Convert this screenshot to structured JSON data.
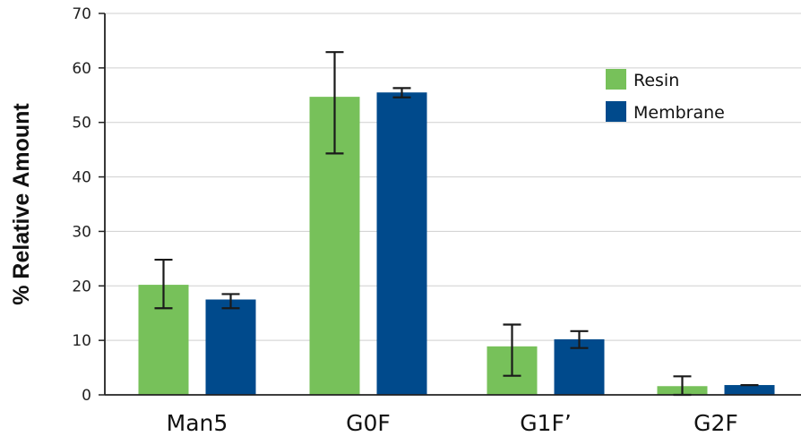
{
  "chart_data": {
    "type": "bar",
    "title": "",
    "xlabel": "",
    "ylabel": "% Relative Amount",
    "ylim": [
      0,
      70
    ],
    "yticks": [
      0,
      10,
      20,
      30,
      40,
      50,
      60,
      70
    ],
    "grid": true,
    "legend_position": "top-right",
    "categories": [
      "Man5",
      "G0F",
      "G1F’",
      "G2F"
    ],
    "series": [
      {
        "name": "Resin",
        "color": "#77C15A",
        "values": [
          20.2,
          54.7,
          8.9,
          1.6
        ],
        "error_low": [
          15.9,
          44.3,
          3.5,
          0.0
        ],
        "error_high": [
          24.8,
          62.9,
          12.9,
          3.4
        ]
      },
      {
        "name": "Membrane",
        "color": "#004A8C",
        "values": [
          17.5,
          55.5,
          10.2,
          1.8
        ],
        "error_low": [
          15.9,
          54.6,
          8.6,
          1.8
        ],
        "error_high": [
          18.5,
          56.3,
          11.7,
          1.8
        ]
      }
    ]
  }
}
